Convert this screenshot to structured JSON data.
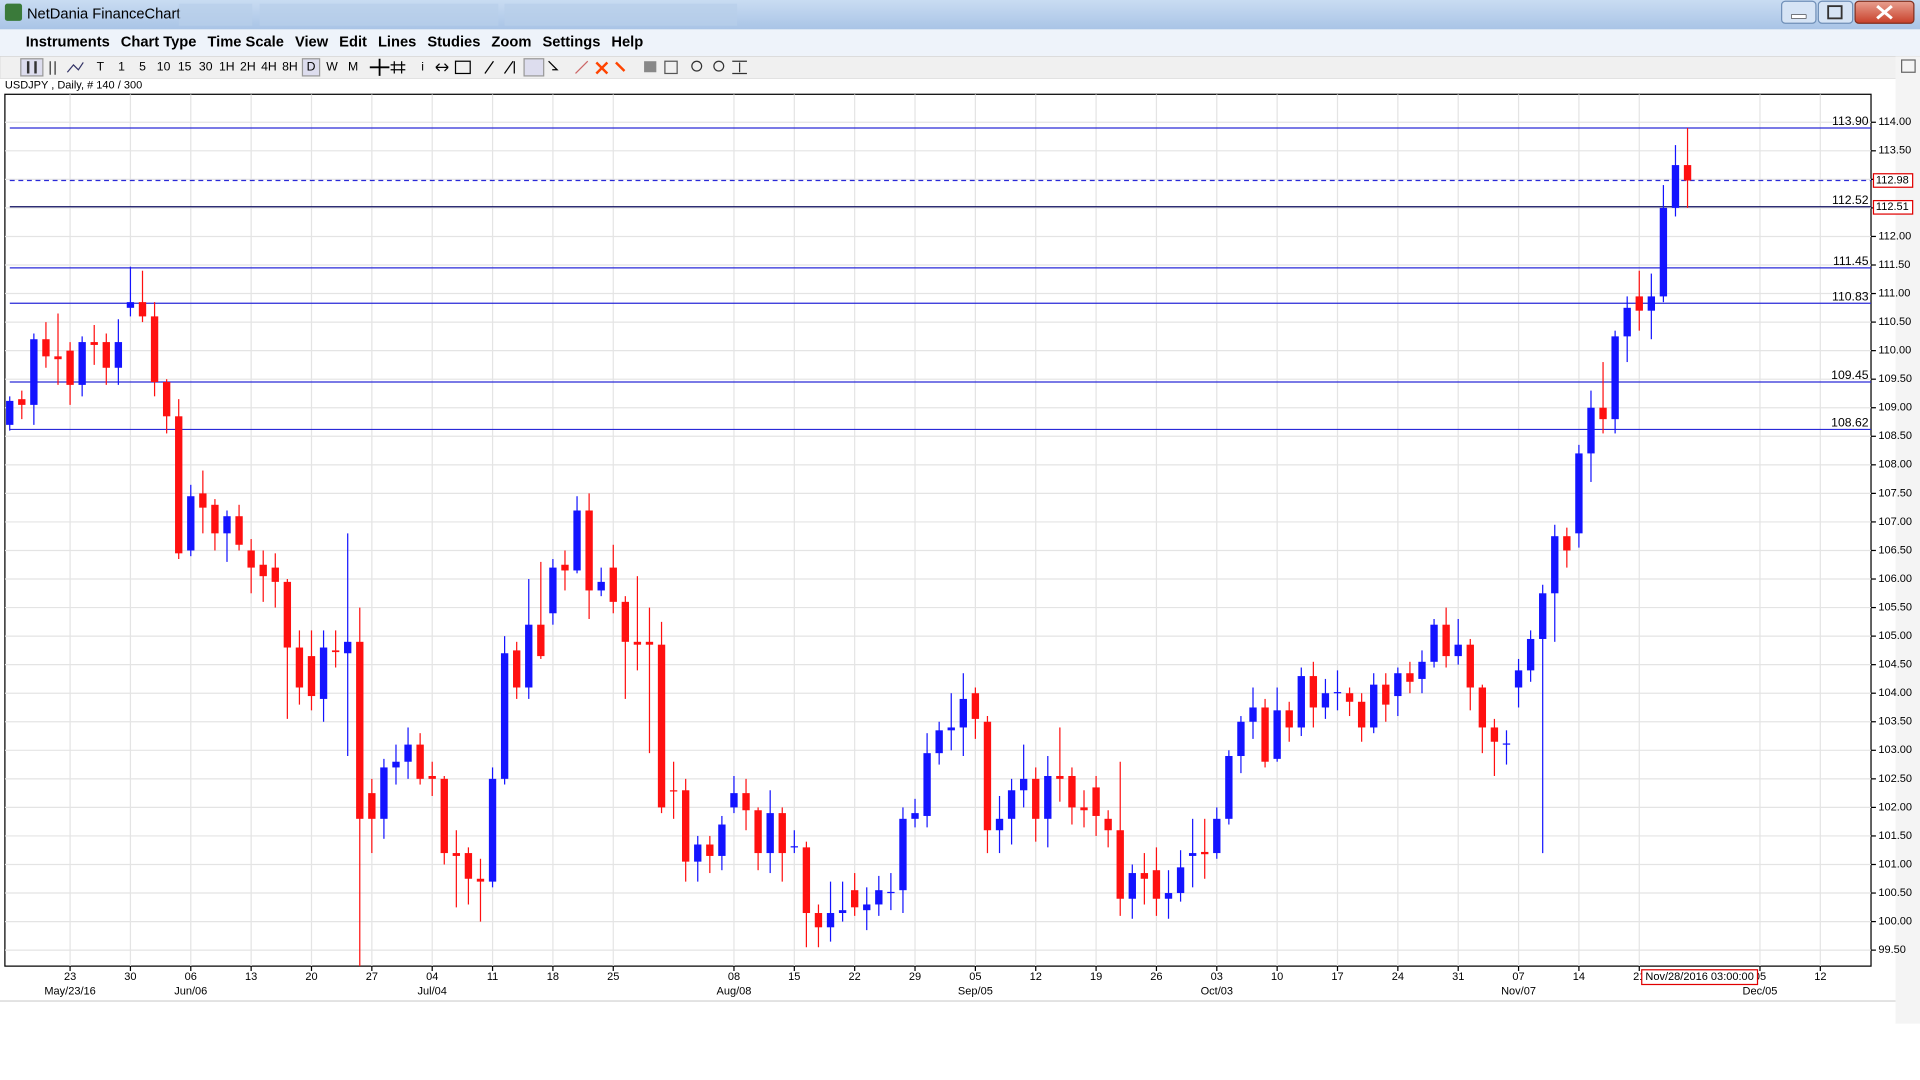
{
  "window": {
    "title": "NetDania FinanceChart"
  },
  "menu": [
    "Instruments",
    "Chart Type",
    "Time Scale",
    "View",
    "Edit",
    "Lines",
    "Studies",
    "Zoom",
    "Settings",
    "Help"
  ],
  "timeframes": [
    "T",
    "1",
    "5",
    "10",
    "15",
    "30",
    "1H",
    "2H",
    "4H",
    "8H",
    "D",
    "W",
    "M"
  ],
  "selected_timeframe": "D",
  "chart_data": {
    "type": "candlestick",
    "title": "USDJPY , Daily, # 140 / 300",
    "up_color": "#1414ff",
    "down_color": "#ff1010",
    "grid": true,
    "xlim": [
      -0.4,
      154.2
    ],
    "ylim": [
      99.22,
      114.49
    ],
    "open": [
      108.7,
      109.15,
      109.05,
      110.2,
      109.9,
      110.0,
      109.4,
      110.15,
      110.15,
      109.7,
      110.75,
      110.85,
      110.6,
      109.45,
      108.85,
      106.5,
      107.5,
      107.3,
      106.8,
      107.1,
      106.5,
      106.25,
      106.2,
      105.95,
      104.8,
      104.65,
      103.9,
      104.75,
      104.7,
      104.9,
      102.25,
      101.8,
      102.7,
      102.8,
      103.1,
      102.55,
      102.5,
      101.2,
      101.2,
      100.75,
      100.7,
      102.5,
      104.75,
      104.1,
      105.2,
      105.4,
      106.25,
      106.15,
      107.2,
      105.8,
      106.2,
      105.6,
      104.9,
      104.9,
      104.85,
      102.3,
      102.3,
      101.05,
      101.35,
      101.15,
      102.0,
      102.25,
      101.95,
      101.2,
      101.9,
      101.3,
      101.3,
      100.15,
      99.9,
      100.15,
      100.55,
      100.2,
      100.3,
      100.5,
      100.55,
      101.8,
      101.85,
      102.95,
      103.35,
      103.4,
      104.0,
      103.5,
      101.6,
      101.8,
      102.3,
      102.5,
      101.8,
      102.55,
      102.55,
      102.0,
      102.35,
      101.8,
      101.6,
      100.4,
      100.85,
      100.9,
      100.4,
      100.5,
      101.15,
      101.22,
      101.2,
      101.8,
      102.9,
      103.5,
      103.75,
      102.85,
      103.7,
      103.4,
      104.3,
      103.75,
      104.0,
      104.0,
      103.85,
      103.4,
      104.15,
      103.95,
      104.35,
      104.25,
      104.55,
      105.2,
      104.65,
      104.85,
      104.1,
      103.4,
      103.1,
      104.1,
      104.4,
      104.95,
      105.75,
      106.75,
      106.8,
      108.2,
      109.0,
      108.8,
      110.25,
      110.95,
      110.7,
      110.95,
      112.5,
      113.25
    ],
    "high": [
      109.2,
      109.3,
      110.3,
      110.5,
      110.65,
      110.15,
      110.25,
      110.45,
      110.3,
      110.55,
      111.47,
      111.4,
      110.85,
      109.5,
      109.15,
      107.65,
      107.9,
      107.4,
      107.2,
      107.3,
      106.7,
      106.5,
      106.45,
      106.0,
      105.1,
      105.1,
      105.1,
      105.1,
      106.8,
      105.5,
      102.5,
      102.85,
      103.1,
      103.4,
      103.3,
      102.8,
      102.55,
      101.6,
      101.3,
      101.1,
      102.7,
      105.0,
      104.9,
      106.0,
      106.3,
      106.35,
      106.5,
      107.45,
      107.5,
      106.2,
      106.6,
      105.7,
      106.05,
      105.5,
      105.25,
      102.8,
      102.5,
      101.5,
      101.5,
      101.85,
      102.55,
      102.5,
      102.0,
      102.3,
      102.0,
      101.6,
      101.4,
      100.3,
      100.7,
      100.7,
      100.85,
      100.6,
      100.8,
      100.85,
      102.0,
      102.15,
      103.3,
      103.5,
      104.0,
      104.35,
      104.1,
      103.6,
      102.2,
      102.5,
      103.1,
      102.7,
      102.9,
      103.4,
      102.7,
      102.3,
      102.55,
      101.95,
      102.8,
      101.0,
      101.2,
      101.3,
      100.9,
      101.25,
      101.8,
      101.8,
      102.0,
      103.0,
      103.6,
      104.1,
      103.9,
      104.1,
      103.85,
      104.45,
      104.55,
      104.25,
      104.4,
      104.1,
      104.0,
      104.35,
      104.35,
      104.45,
      104.55,
      104.75,
      105.3,
      105.5,
      105.3,
      104.95,
      104.15,
      103.55,
      103.35,
      104.6,
      105.1,
      105.9,
      106.95,
      106.9,
      108.35,
      109.3,
      109.8,
      110.35,
      110.95,
      111.4,
      111.35,
      112.9,
      113.6,
      113.9
    ],
    "low": [
      108.6,
      108.8,
      108.7,
      109.7,
      109.4,
      109.05,
      109.2,
      109.75,
      109.4,
      109.4,
      110.6,
      110.5,
      109.2,
      108.55,
      106.35,
      106.4,
      106.8,
      106.5,
      106.3,
      106.5,
      105.75,
      105.6,
      105.5,
      103.55,
      103.8,
      103.7,
      103.5,
      104.45,
      102.9,
      99.02,
      101.2,
      101.45,
      102.4,
      102.5,
      102.4,
      102.2,
      101.0,
      100.25,
      100.3,
      100.0,
      100.6,
      102.4,
      103.9,
      103.9,
      104.6,
      105.2,
      105.8,
      106.1,
      105.3,
      105.7,
      105.4,
      103.9,
      104.4,
      102.95,
      101.9,
      101.8,
      100.7,
      100.7,
      100.85,
      100.9,
      101.9,
      101.6,
      100.9,
      100.85,
      100.7,
      101.2,
      99.55,
      99.55,
      99.65,
      100.0,
      100.1,
      99.85,
      100.1,
      100.2,
      100.15,
      101.65,
      101.65,
      102.75,
      103.0,
      102.9,
      103.2,
      101.2,
      101.2,
      101.35,
      102.0,
      101.4,
      101.3,
      102.1,
      101.7,
      101.65,
      101.5,
      101.3,
      100.1,
      100.05,
      100.3,
      100.1,
      100.05,
      100.35,
      100.6,
      100.75,
      101.1,
      101.7,
      102.6,
      103.2,
      102.7,
      102.8,
      103.15,
      103.25,
      103.4,
      103.55,
      103.7,
      103.6,
      103.15,
      103.3,
      103.5,
      103.6,
      104.0,
      104.0,
      104.45,
      104.45,
      104.5,
      103.7,
      102.95,
      102.55,
      102.75,
      103.75,
      104.2,
      101.2,
      104.9,
      106.2,
      106.55,
      107.7,
      108.55,
      108.55,
      109.8,
      110.35,
      110.2,
      110.85,
      112.35,
      112.5
    ],
    "close": [
      109.12,
      109.05,
      110.2,
      109.9,
      109.85,
      109.4,
      110.15,
      110.1,
      109.7,
      110.15,
      110.85,
      110.6,
      109.45,
      108.85,
      106.45,
      107.45,
      107.25,
      106.8,
      107.1,
      106.6,
      106.2,
      106.05,
      105.95,
      104.8,
      104.1,
      103.95,
      104.8,
      104.72,
      104.9,
      101.8,
      101.8,
      102.7,
      102.8,
      103.1,
      102.5,
      102.5,
      101.2,
      101.15,
      100.75,
      100.7,
      102.5,
      104.7,
      104.1,
      105.2,
      104.65,
      106.2,
      106.15,
      107.2,
      105.8,
      105.95,
      105.6,
      104.9,
      104.85,
      104.85,
      102.0,
      102.28,
      101.05,
      101.35,
      101.15,
      101.7,
      102.25,
      101.95,
      101.2,
      101.9,
      101.2,
      101.32,
      100.15,
      99.9,
      100.15,
      100.2,
      100.25,
      100.3,
      100.55,
      100.52,
      101.8,
      101.9,
      102.95,
      103.35,
      103.4,
      103.9,
      103.55,
      101.6,
      101.8,
      102.3,
      102.5,
      101.8,
      102.55,
      102.5,
      102.0,
      101.95,
      101.85,
      101.6,
      100.4,
      100.85,
      100.75,
      100.4,
      100.5,
      100.95,
      101.2,
      101.18,
      101.8,
      102.9,
      103.5,
      103.75,
      102.8,
      103.7,
      103.4,
      104.3,
      103.75,
      104.0,
      104.02,
      103.85,
      103.4,
      104.15,
      103.8,
      104.35,
      104.2,
      104.55,
      105.2,
      104.65,
      104.85,
      104.1,
      103.4,
      103.15,
      103.12,
      104.4,
      104.95,
      105.75,
      106.75,
      106.5,
      108.2,
      109.0,
      108.8,
      110.25,
      110.75,
      110.7,
      110.95,
      112.5,
      113.25,
      112.98
    ],
    "yticks": [
      {
        "value": 99.5,
        "label": "99.50"
      },
      {
        "value": 100,
        "label": "100.00"
      },
      {
        "value": 100.5,
        "label": "100.50"
      },
      {
        "value": 101,
        "label": "101.00"
      },
      {
        "value": 101.5,
        "label": "101.50"
      },
      {
        "value": 102,
        "label": "102.00"
      },
      {
        "value": 102.5,
        "label": "102.50"
      },
      {
        "value": 103,
        "label": "103.00"
      },
      {
        "value": 103.5,
        "label": "103.50"
      },
      {
        "value": 104,
        "label": "104.00"
      },
      {
        "value": 104.5,
        "label": "104.50"
      },
      {
        "value": 105,
        "label": "105.00"
      },
      {
        "value": 105.5,
        "label": "105.50"
      },
      {
        "value": 106,
        "label": "106.00"
      },
      {
        "value": 106.5,
        "label": "106.50"
      },
      {
        "value": 107,
        "label": "107.00"
      },
      {
        "value": 107.5,
        "label": "107.50"
      },
      {
        "value": 108,
        "label": "108.00"
      },
      {
        "value": 108.5,
        "label": "108.50"
      },
      {
        "value": 109,
        "label": "109.00"
      },
      {
        "value": 109.5,
        "label": "109.50"
      },
      {
        "value": 110,
        "label": "110.00"
      },
      {
        "value": 110.5,
        "label": "110.50"
      },
      {
        "value": 111,
        "label": "111.00"
      },
      {
        "value": 111.5,
        "label": "111.50"
      },
      {
        "value": 112,
        "label": "112.00"
      },
      {
        "value": 112.5,
        "label": "112.50"
      },
      {
        "value": 113,
        "label": "113.00"
      },
      {
        "value": 113.5,
        "label": "113.50"
      },
      {
        "value": 114,
        "label": "114.00"
      }
    ],
    "xticks": [
      {
        "value": 5,
        "label": "23"
      },
      {
        "value": 10,
        "label": "30"
      },
      {
        "value": 15,
        "label": "06"
      },
      {
        "value": 20,
        "label": "13"
      },
      {
        "value": 25,
        "label": "20"
      },
      {
        "value": 30,
        "label": "27"
      },
      {
        "value": 35,
        "label": "04"
      },
      {
        "value": 40,
        "label": "11"
      },
      {
        "value": 45,
        "label": "18"
      },
      {
        "value": 50,
        "label": "25"
      },
      {
        "value": 60,
        "label": "08"
      },
      {
        "value": 65,
        "label": "15"
      },
      {
        "value": 70,
        "label": "22"
      },
      {
        "value": 75,
        "label": "29"
      },
      {
        "value": 80,
        "label": "05"
      },
      {
        "value": 85,
        "label": "12"
      },
      {
        "value": 90,
        "label": "19"
      },
      {
        "value": 95,
        "label": "26"
      },
      {
        "value": 100,
        "label": "03"
      },
      {
        "value": 105,
        "label": "10"
      },
      {
        "value": 110,
        "label": "17"
      },
      {
        "value": 115,
        "label": "24"
      },
      {
        "value": 120,
        "label": "31"
      },
      {
        "value": 125,
        "label": "07"
      },
      {
        "value": 130,
        "label": "14"
      },
      {
        "value": 135,
        "label": "21"
      },
      {
        "value": 145,
        "label": "05"
      },
      {
        "value": 150,
        "label": "12"
      }
    ],
    "month_ticks": [
      {
        "value": 5,
        "label": "May/23/16"
      },
      {
        "value": 15,
        "label": "Jun/06"
      },
      {
        "value": 35,
        "label": "Jul/04"
      },
      {
        "value": 60,
        "label": "Aug/08"
      },
      {
        "value": 80,
        "label": "Sep/05"
      },
      {
        "value": 100,
        "label": "Oct/03"
      },
      {
        "value": 125,
        "label": "Nov/07"
      },
      {
        "value": 145,
        "label": "Dec/05"
      }
    ],
    "cursor": {
      "value": 140,
      "label": "Nov/28/2016 03:00:00"
    },
    "lines": [
      {
        "value": 113.9,
        "label": "113.90",
        "color": "#2a2ad8",
        "dashed": false
      },
      {
        "value": 112.98,
        "color": "#2a2ad8",
        "dashed": true
      },
      {
        "value": 112.52,
        "label": "112.52",
        "color": "#101060",
        "label_color": "#000000",
        "dashed": false
      },
      {
        "value": 111.45,
        "label": "111.45",
        "color": "#2a2ad8",
        "dashed": false
      },
      {
        "value": 110.83,
        "label": "110.83",
        "color": "#2a2ad8",
        "dashed": false
      },
      {
        "value": 109.45,
        "label": "109.45",
        "color": "#2a2ad8",
        "dashed": false
      },
      {
        "value": 108.62,
        "label": "108.62",
        "color": "#2a2ad8",
        "dashed": false
      }
    ],
    "price_markers": [
      {
        "value": 112.98,
        "label": "112.98"
      },
      {
        "value": 112.51,
        "label": "112.51"
      }
    ]
  }
}
